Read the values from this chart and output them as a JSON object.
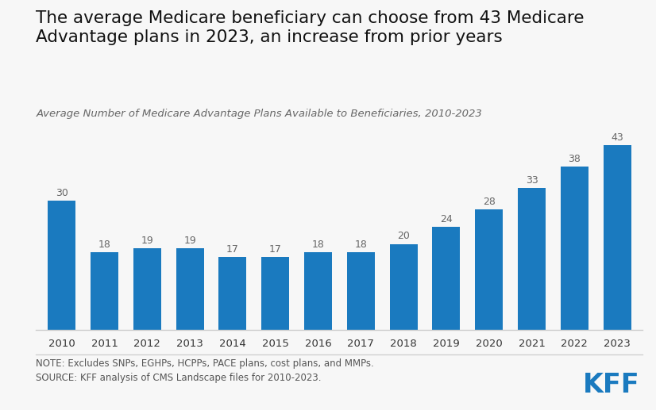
{
  "years": [
    "2010",
    "2011",
    "2012",
    "2013",
    "2014",
    "2015",
    "2016",
    "2017",
    "2018",
    "2019",
    "2020",
    "2021",
    "2022",
    "2023"
  ],
  "values": [
    30,
    18,
    19,
    19,
    17,
    17,
    18,
    18,
    20,
    24,
    28,
    33,
    38,
    43
  ],
  "bar_color": "#1a7abf",
  "title_line1": "The average Medicare beneficiary can choose from 43 Medicare",
  "title_line2": "Advantage plans in 2023, an increase from prior years",
  "subtitle": "Average Number of Medicare Advantage Plans Available to Beneficiaries, 2010-2023",
  "note_line1": "NOTE: Excludes SNPs, EGHPs, HCPPs, PACE plans, cost plans, and MMPs.",
  "note_line2": "SOURCE: KFF analysis of CMS Landscape files for 2010-2023.",
  "kff_text": "KFF",
  "background_color": "#f7f7f7",
  "ylim": [
    0,
    50
  ],
  "bar_label_fontsize": 9,
  "title_fontsize": 15.5,
  "subtitle_fontsize": 9.5,
  "note_fontsize": 8.5,
  "xtick_fontsize": 9.5,
  "label_color": "#666666",
  "title_color": "#111111",
  "note_color": "#555555",
  "kff_color": "#1a7abf",
  "spine_color": "#cccccc"
}
